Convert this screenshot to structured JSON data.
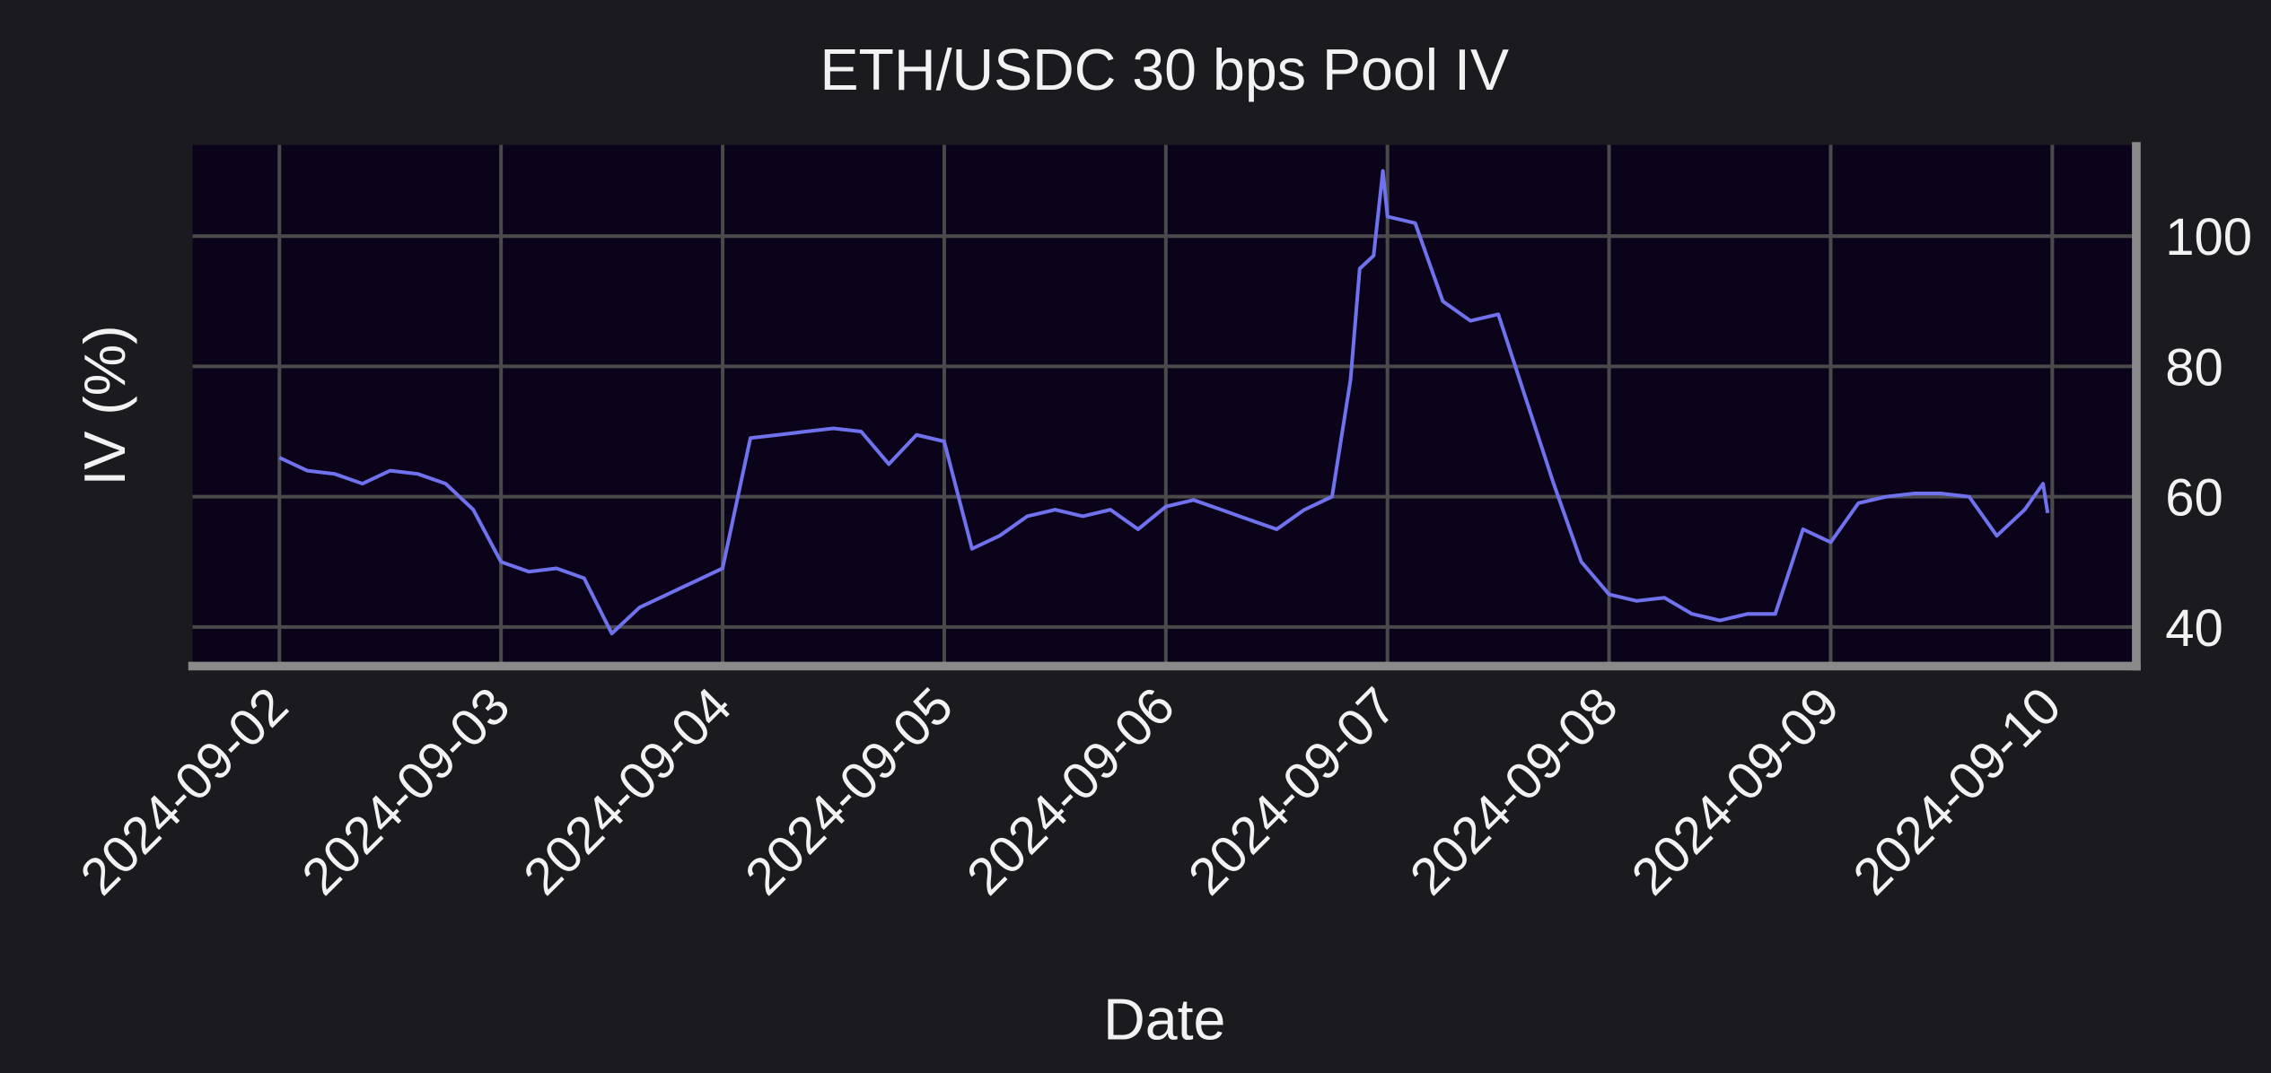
{
  "chart_data": {
    "type": "line",
    "title": "ETH/USDC 30 bps Pool IV",
    "xlabel": "Date",
    "ylabel": "IV (%)",
    "x": [
      "2024-09-02T00:00",
      "2024-09-02T03:00",
      "2024-09-02T06:00",
      "2024-09-02T09:00",
      "2024-09-02T12:00",
      "2024-09-02T15:00",
      "2024-09-02T18:00",
      "2024-09-02T21:00",
      "2024-09-03T00:00",
      "2024-09-03T03:00",
      "2024-09-03T06:00",
      "2024-09-03T09:00",
      "2024-09-03T12:00",
      "2024-09-03T15:00",
      "2024-09-03T18:00",
      "2024-09-03T21:00",
      "2024-09-04T00:00",
      "2024-09-04T03:00",
      "2024-09-04T06:00",
      "2024-09-04T09:00",
      "2024-09-04T12:00",
      "2024-09-04T15:00",
      "2024-09-04T18:00",
      "2024-09-04T21:00",
      "2024-09-05T00:00",
      "2024-09-05T03:00",
      "2024-09-05T06:00",
      "2024-09-05T09:00",
      "2024-09-05T12:00",
      "2024-09-05T15:00",
      "2024-09-05T18:00",
      "2024-09-05T21:00",
      "2024-09-06T00:00",
      "2024-09-06T03:00",
      "2024-09-06T06:00",
      "2024-09-06T09:00",
      "2024-09-06T12:00",
      "2024-09-06T15:00",
      "2024-09-06T18:00",
      "2024-09-06T20:00",
      "2024-09-06T21:00",
      "2024-09-06T22:30",
      "2024-09-06T23:30",
      "2024-09-07T00:00",
      "2024-09-07T03:00",
      "2024-09-07T06:00",
      "2024-09-07T09:00",
      "2024-09-07T12:00",
      "2024-09-07T15:00",
      "2024-09-07T18:00",
      "2024-09-07T21:00",
      "2024-09-08T00:00",
      "2024-09-08T03:00",
      "2024-09-08T06:00",
      "2024-09-08T09:00",
      "2024-09-08T12:00",
      "2024-09-08T15:00",
      "2024-09-08T18:00",
      "2024-09-08T21:00",
      "2024-09-09T00:00",
      "2024-09-09T03:00",
      "2024-09-09T06:00",
      "2024-09-09T09:00",
      "2024-09-09T12:00",
      "2024-09-09T15:00",
      "2024-09-09T18:00",
      "2024-09-09T21:00",
      "2024-09-09T23:00",
      "2024-09-09T23:30"
    ],
    "series": [
      {
        "name": "IV",
        "color": "#6f72ec",
        "values": [
          66,
          64,
          63.5,
          62,
          64,
          63.5,
          62,
          58,
          50,
          48.5,
          49,
          47.5,
          39,
          43,
          45,
          47,
          49,
          69,
          69.5,
          70,
          70.5,
          70,
          65,
          69.5,
          68.5,
          52,
          54,
          57,
          58,
          57,
          58,
          55,
          58.5,
          59.5,
          58,
          56.5,
          55,
          58,
          60,
          78,
          95,
          97,
          110,
          103,
          102,
          90,
          87,
          88,
          75,
          62,
          50,
          45,
          44,
          44.5,
          42,
          41,
          42,
          42,
          55,
          53,
          59,
          60,
          60.5,
          60.5,
          60,
          54,
          58,
          62,
          57.5
        ]
      }
    ],
    "xlim": [
      "2024-09-01T14:36",
      "2024-09-10T09:06"
    ],
    "xticks": [
      "2024-09-02",
      "2024-09-03",
      "2024-09-04",
      "2024-09-05",
      "2024-09-06",
      "2024-09-07",
      "2024-09-08",
      "2024-09-09",
      "2024-09-10"
    ],
    "ylim": [
      34,
      114
    ],
    "yticks": [
      40,
      60,
      80,
      100
    ],
    "grid": true
  }
}
